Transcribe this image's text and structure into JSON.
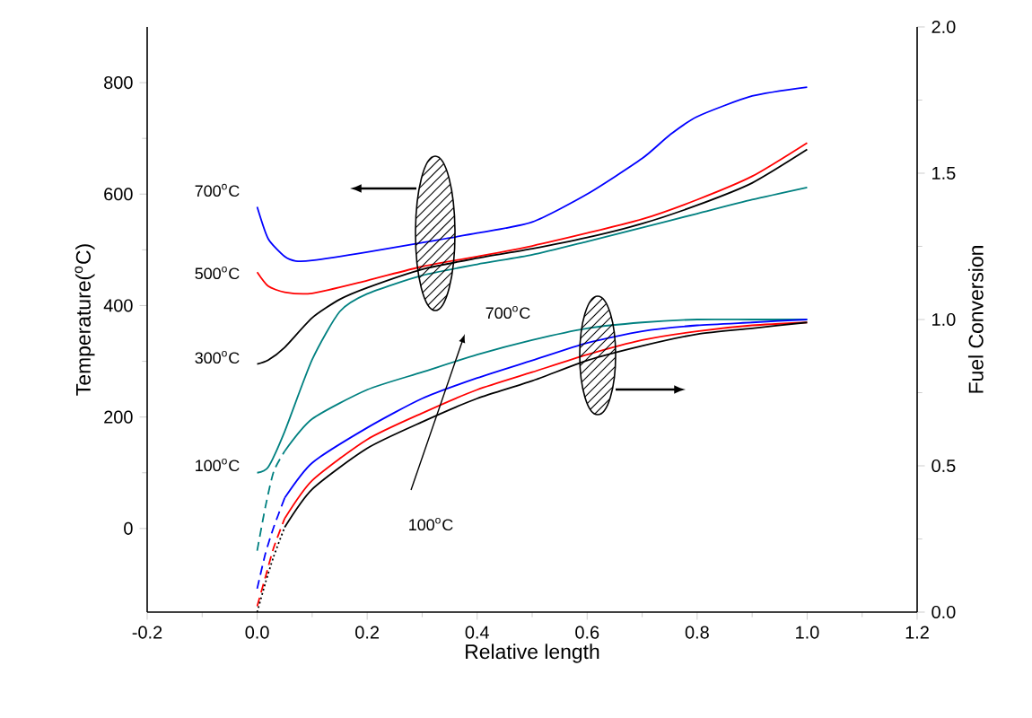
{
  "chart_data": {
    "type": "line",
    "xlabel": "Relative length",
    "ylabel": "Temperature($^{o}$C)",
    "y2label": "Fuel Conversion",
    "xlim": [
      -0.2,
      1.2
    ],
    "xticks": [
      -0.2,
      {
        "value": 0,
        "label": "0.0"
      },
      0.2,
      0.4,
      0.6,
      0.8,
      {
        "value": 1,
        "label": "1.0"
      },
      1.2
    ],
    "ylim": [
      -150,
      900
    ],
    "yticks": [
      0,
      200,
      400,
      600,
      800
    ],
    "y2lim": [
      0,
      2
    ],
    "y2ticks": [
      {
        "value": 0,
        "label": "0.0"
      },
      0.5,
      {
        "value": 1,
        "label": "1.0"
      },
      1.5,
      {
        "value": 2,
        "label": "2.0"
      }
    ],
    "grid": false,
    "marker": "none",
    "series": [
      {
        "color": "#0000ff",
        "x": [
          0,
          0.02,
          0.05,
          0.07,
          0.1,
          0.2,
          0.3,
          0.4,
          0.5,
          0.6,
          0.7,
          0.75,
          0.8,
          0.9,
          1.0
        ],
        "values": [
          577,
          520,
          488,
          480,
          481,
          496,
          513,
          530,
          550,
          600,
          664,
          706,
          739,
          776,
          792
        ]
      },
      {
        "color": "#ff0000",
        "x": [
          0,
          0.02,
          0.05,
          0.1,
          0.2,
          0.3,
          0.4,
          0.5,
          0.6,
          0.7,
          0.8,
          0.9,
          1.0
        ],
        "values": [
          460,
          435,
          424,
          422,
          445,
          470,
          488,
          507,
          530,
          555,
          590,
          632,
          692
        ]
      },
      {
        "color": "#000000",
        "x": [
          0,
          0.02,
          0.05,
          0.1,
          0.15,
          0.2,
          0.3,
          0.4,
          0.5,
          0.6,
          0.7,
          0.8,
          0.9,
          1.0
        ],
        "values": [
          295,
          302,
          325,
          378,
          411,
          432,
          465,
          485,
          502,
          522,
          547,
          580,
          620,
          680
        ]
      },
      {
        "color": "#008080",
        "x": [
          0,
          0.02,
          0.05,
          0.1,
          0.15,
          0.2,
          0.3,
          0.4,
          0.5,
          0.6,
          0.7,
          0.8,
          0.9,
          1.0
        ],
        "values": [
          100,
          110,
          174,
          303,
          389,
          421,
          454,
          474,
          491,
          515,
          540,
          565,
          590,
          612
        ]
      },
      {
        "color": "#008080",
        "axis": "y2",
        "line_style": "dashed",
        "x": [
          0,
          0.015,
          0.03,
          0.05
        ],
        "values": [
          0.21,
          0.36,
          0.48,
          0.55
        ]
      },
      {
        "color": "#008080",
        "axis": "y2",
        "x": [
          0.05,
          0.1,
          0.2,
          0.3,
          0.4,
          0.5,
          0.6,
          0.7,
          0.8,
          0.9,
          1.0
        ],
        "values": [
          0.55,
          0.66,
          0.76,
          0.82,
          0.88,
          0.93,
          0.97,
          0.99,
          1.0,
          1.0,
          1.0
        ]
      },
      {
        "color": "#0000ff",
        "axis": "y2",
        "line_style": "dashed",
        "x": [
          0,
          0.015,
          0.03,
          0.05
        ],
        "values": [
          0.08,
          0.2,
          0.29,
          0.39
        ]
      },
      {
        "color": "#0000ff",
        "axis": "y2",
        "x": [
          0.05,
          0.1,
          0.2,
          0.3,
          0.4,
          0.5,
          0.6,
          0.7,
          0.8,
          0.9,
          1.0
        ],
        "values": [
          0.39,
          0.51,
          0.63,
          0.73,
          0.8,
          0.86,
          0.92,
          0.96,
          0.98,
          0.99,
          1.0
        ]
      },
      {
        "color": "#ff0000",
        "axis": "y2",
        "line_style": "dashed",
        "x": [
          0,
          0.015,
          0.03,
          0.05
        ],
        "values": [
          0.02,
          0.12,
          0.22,
          0.32
        ]
      },
      {
        "color": "#ff0000",
        "axis": "y2",
        "x": [
          0.05,
          0.1,
          0.2,
          0.3,
          0.4,
          0.5,
          0.6,
          0.7,
          0.8,
          0.9,
          1.0
        ],
        "values": [
          0.32,
          0.45,
          0.59,
          0.68,
          0.76,
          0.82,
          0.88,
          0.93,
          0.96,
          0.98,
          0.99
        ]
      },
      {
        "color": "#000000",
        "axis": "y2",
        "line_style": "dotted",
        "x": [
          0,
          0.015,
          0.03,
          0.05
        ],
        "values": [
          0.0,
          0.1,
          0.19,
          0.29
        ]
      },
      {
        "color": "#000000",
        "axis": "y2",
        "x": [
          0.05,
          0.1,
          0.2,
          0.3,
          0.4,
          0.5,
          0.6,
          0.7,
          0.8,
          0.9,
          1.0
        ],
        "values": [
          0.29,
          0.42,
          0.56,
          0.65,
          0.73,
          0.79,
          0.86,
          0.91,
          0.95,
          0.97,
          0.99
        ]
      }
    ],
    "annotations": [
      "700$^{o}$C",
      "500$^{o}$C",
      "300$^{o}$C",
      "100$^{o}$C",
      "700$^{o}$C",
      "100$^{o}$C"
    ]
  }
}
